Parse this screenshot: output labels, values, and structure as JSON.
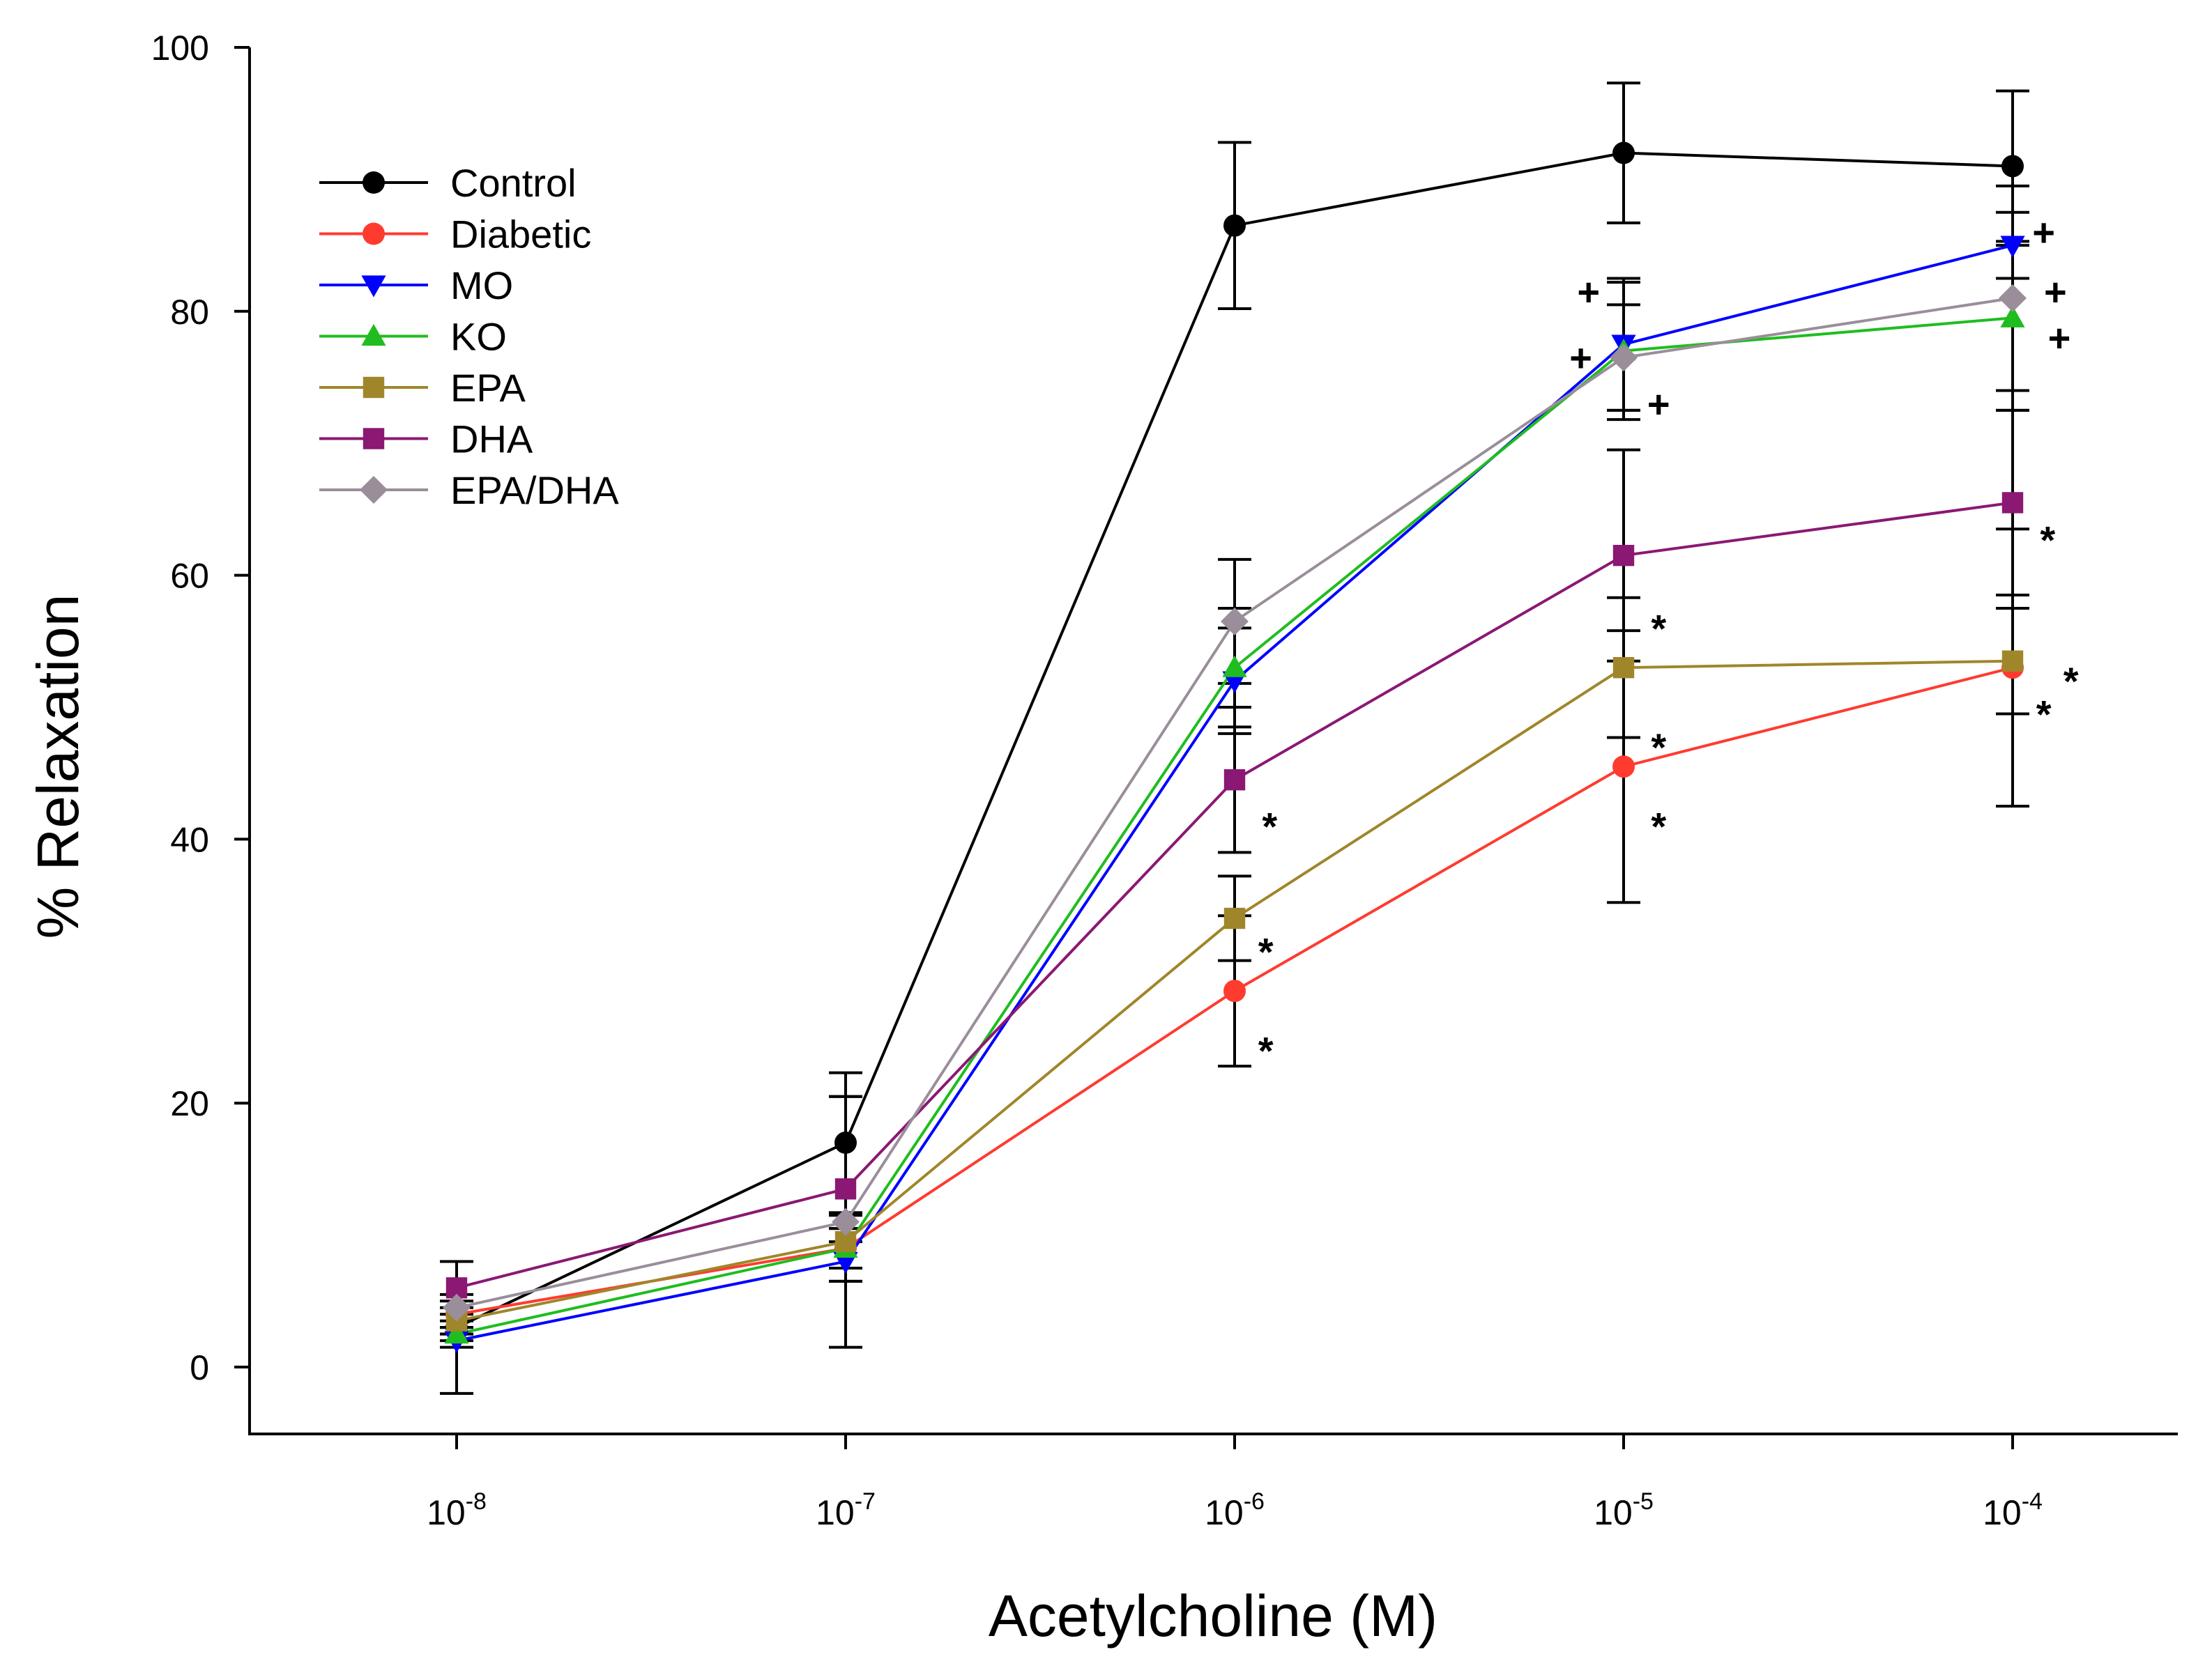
{
  "chart_data": {
    "type": "line",
    "title": "",
    "xlabel": "Acetylcholine (M)",
    "ylabel": "% Relaxation",
    "ylim": [
      0,
      100
    ],
    "yticks": [
      0,
      20,
      40,
      60,
      80,
      100
    ],
    "x_exponents": [
      -8,
      -7,
      -6,
      -5,
      -4
    ],
    "categories": [
      "10-8",
      "10-7",
      "10-6",
      "10-5",
      "10-4"
    ],
    "tick_base": "10",
    "legend_position": "top-left",
    "series": [
      {
        "name": "Control",
        "color": "#000000",
        "marker": "circle",
        "values": [
          3,
          17,
          86.5,
          92,
          91
        ],
        "errors": [
          5,
          5.3,
          6.3,
          5.3,
          5.7
        ]
      },
      {
        "name": "Diabetic",
        "color": "#ff3b30",
        "marker": "circle",
        "values": [
          4,
          9,
          28.5,
          45.5,
          53
        ],
        "errors": [
          1,
          1.5,
          5.7,
          10.3,
          10.5
        ]
      },
      {
        "name": "MO",
        "color": "#0000ff",
        "marker": "triangle-down",
        "values": [
          2,
          8,
          52,
          77.5,
          85
        ],
        "errors": [
          0.5,
          1.5,
          4,
          5,
          2.5
        ]
      },
      {
        "name": "KO",
        "color": "#1fbd1f",
        "marker": "triangle-up",
        "values": [
          2.5,
          9,
          53,
          77,
          79.5
        ],
        "errors": [
          0.5,
          1.5,
          4.5,
          5.2,
          5.5
        ]
      },
      {
        "name": "EPA",
        "color": "#a0862a",
        "marker": "square",
        "values": [
          3.5,
          9.5,
          34,
          53,
          53.5
        ],
        "errors": [
          1,
          2,
          3.2,
          5.3,
          4
        ]
      },
      {
        "name": "DHA",
        "color": "#8b1873",
        "marker": "square",
        "values": [
          6,
          13.5,
          44.5,
          61.5,
          65.5
        ],
        "errors": [
          2,
          7,
          5.5,
          8,
          7
        ]
      },
      {
        "name": "EPA/DHA",
        "color": "#9a8e9a",
        "marker": "diamond",
        "values": [
          4.5,
          11,
          56.5,
          76.5,
          81
        ],
        "errors": [
          1,
          9.5,
          4.7,
          4,
          8.5
        ]
      }
    ],
    "annotations": [
      {
        "text": "+",
        "x": -4,
        "y": 85,
        "dx": 0.08,
        "dy": 1
      },
      {
        "text": "+",
        "x": -4,
        "y": 81,
        "dx": 0.11,
        "dy": 0.5
      },
      {
        "text": "+",
        "x": -4,
        "y": 79.5,
        "dx": 0.12,
        "dy": -1.5
      },
      {
        "text": "+",
        "x": -5,
        "y": 77.5,
        "dx": -0.09,
        "dy": 4
      },
      {
        "text": "+",
        "x": -5,
        "y": 77,
        "dx": -0.11,
        "dy": -0.5
      },
      {
        "text": "+",
        "x": -5,
        "y": 76.5,
        "dx": 0.09,
        "dy": -3.5
      },
      {
        "text": "*",
        "x": -4,
        "y": 65.5,
        "dx": 0.09,
        "dy": -2.8
      },
      {
        "text": "*",
        "x": -4,
        "y": 53.5,
        "dx": 0.15,
        "dy": -1.5
      },
      {
        "text": "*",
        "x": -4,
        "y": 53,
        "dx": 0.08,
        "dy": -3.5
      },
      {
        "text": "*",
        "x": -5,
        "y": 61.5,
        "dx": 0.09,
        "dy": -5.5
      },
      {
        "text": "*",
        "x": -5,
        "y": 53,
        "dx": 0.09,
        "dy": -6
      },
      {
        "text": "*",
        "x": -5,
        "y": 45.5,
        "dx": 0.09,
        "dy": -4.5
      },
      {
        "text": "*",
        "x": -6,
        "y": 44.5,
        "dx": 0.09,
        "dy": -3.5
      },
      {
        "text": "*",
        "x": -6,
        "y": 34,
        "dx": 0.08,
        "dy": -2.5
      },
      {
        "text": "*",
        "x": -6,
        "y": 28.5,
        "dx": 0.08,
        "dy": -4.5
      }
    ]
  }
}
